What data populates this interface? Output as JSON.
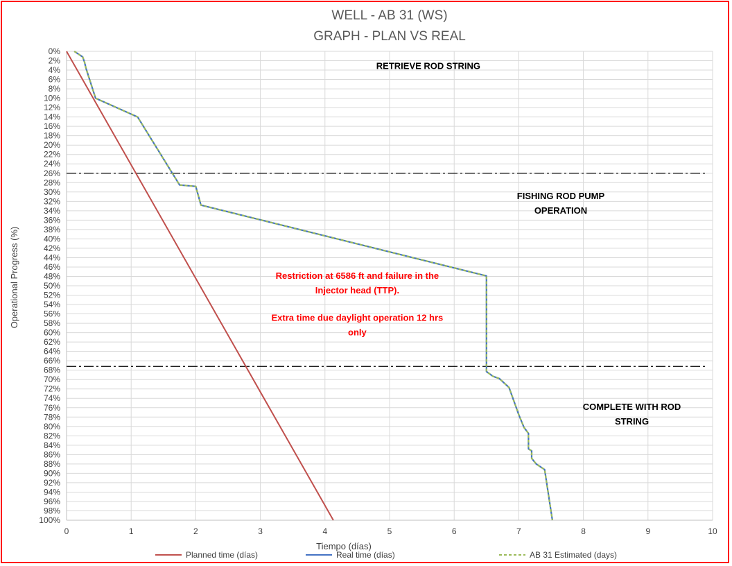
{
  "chart_data": {
    "type": "line",
    "title_lines": [
      "WELL -  AB 31 (WS)",
      "GRAPH  - PLAN VS REAL"
    ],
    "xlabel": "Tiempo (días)",
    "ylabel": "Operational Progress (%)",
    "xlim": [
      0,
      10
    ],
    "ylim": [
      0,
      100
    ],
    "y_inverted": true,
    "grid": true,
    "x_ticks": [
      "0",
      "1",
      "2",
      "3",
      "4",
      "5",
      "6",
      "7",
      "8",
      "9",
      "10"
    ],
    "y_ticks": [
      "0%",
      "2%",
      "4%",
      "6%",
      "8%",
      "10%",
      "12%",
      "14%",
      "16%",
      "18%",
      "20%",
      "22%",
      "24%",
      "26%",
      "28%",
      "30%",
      "32%",
      "34%",
      "36%",
      "38%",
      "40%",
      "42%",
      "44%",
      "46%",
      "48%",
      "50%",
      "52%",
      "54%",
      "56%",
      "58%",
      "60%",
      "62%",
      "64%",
      "66%",
      "68%",
      "70%",
      "72%",
      "74%",
      "76%",
      "78%",
      "80%",
      "82%",
      "84%",
      "86%",
      "88%",
      "90%",
      "92%",
      "94%",
      "96%",
      "98%",
      "100%"
    ],
    "phase_lines_y": [
      26,
      67.2
    ],
    "legend_position": "bottom",
    "series": [
      {
        "name": "Planned time (días)",
        "color": "#c0504d",
        "style": "solid",
        "points": [
          [
            0,
            0
          ],
          [
            4.13,
            100
          ]
        ]
      },
      {
        "name": "Real time (días)",
        "color": "#4472c4",
        "style": "solid",
        "points": [
          [
            0.12,
            0
          ],
          [
            0.25,
            1.2
          ],
          [
            0.28,
            2.4
          ],
          [
            0.3,
            3.6
          ],
          [
            0.45,
            10
          ],
          [
            1.1,
            14
          ],
          [
            1.75,
            28.5
          ],
          [
            2.0,
            28.8
          ],
          [
            2.08,
            32.8
          ],
          [
            6.5,
            47.9
          ],
          [
            6.5,
            68.3
          ],
          [
            6.6,
            69.3
          ],
          [
            6.7,
            69.8
          ],
          [
            6.85,
            71.7
          ],
          [
            7.0,
            77.5
          ],
          [
            7.08,
            80.2
          ],
          [
            7.15,
            81.5
          ],
          [
            7.15,
            84.8
          ],
          [
            7.2,
            85.2
          ],
          [
            7.2,
            86.8
          ],
          [
            7.27,
            88.0
          ],
          [
            7.4,
            89.2
          ],
          [
            7.52,
            100
          ]
        ]
      },
      {
        "name": "AB 31 Estimated (days)",
        "color": "#9bbb59",
        "style": "dashed",
        "points": [
          [
            0.12,
            0
          ],
          [
            0.25,
            1.2
          ],
          [
            0.28,
            2.4
          ],
          [
            0.3,
            3.6
          ],
          [
            0.45,
            10
          ],
          [
            1.1,
            14
          ],
          [
            1.75,
            28.5
          ],
          [
            2.0,
            28.8
          ],
          [
            2.08,
            32.8
          ],
          [
            6.5,
            47.9
          ],
          [
            6.5,
            68.3
          ],
          [
            6.6,
            69.3
          ],
          [
            6.7,
            69.8
          ],
          [
            6.85,
            71.7
          ],
          [
            7.0,
            77.5
          ],
          [
            7.08,
            80.2
          ],
          [
            7.15,
            81.5
          ],
          [
            7.15,
            84.8
          ],
          [
            7.2,
            85.2
          ],
          [
            7.2,
            86.8
          ],
          [
            7.27,
            88.0
          ],
          [
            7.4,
            89.2
          ],
          [
            7.52,
            100
          ]
        ]
      }
    ],
    "annotations": [
      {
        "lines": [
          "RETRIEVE ROD STRING"
        ],
        "color": "#000000",
        "x": 5.6,
        "y": 3.8
      },
      {
        "lines": [
          "FISHING ROD PUMP",
          "OPERATION"
        ],
        "color": "#000000",
        "x": 7.65,
        "y": 31.5
      },
      {
        "lines": [
          "Restriction at 6586 ft and failure in the",
          "Injector head (TTP)."
        ],
        "color": "#ff0000",
        "x": 4.5,
        "y": 48.5
      },
      {
        "lines": [
          "Extra time due daylight operation 12 hrs",
          "only"
        ],
        "color": "#ff0000",
        "x": 4.5,
        "y": 57.5
      },
      {
        "lines": [
          "COMPLETE WITH ROD",
          "STRING"
        ],
        "color": "#000000",
        "x": 8.75,
        "y": 76.5
      }
    ]
  }
}
